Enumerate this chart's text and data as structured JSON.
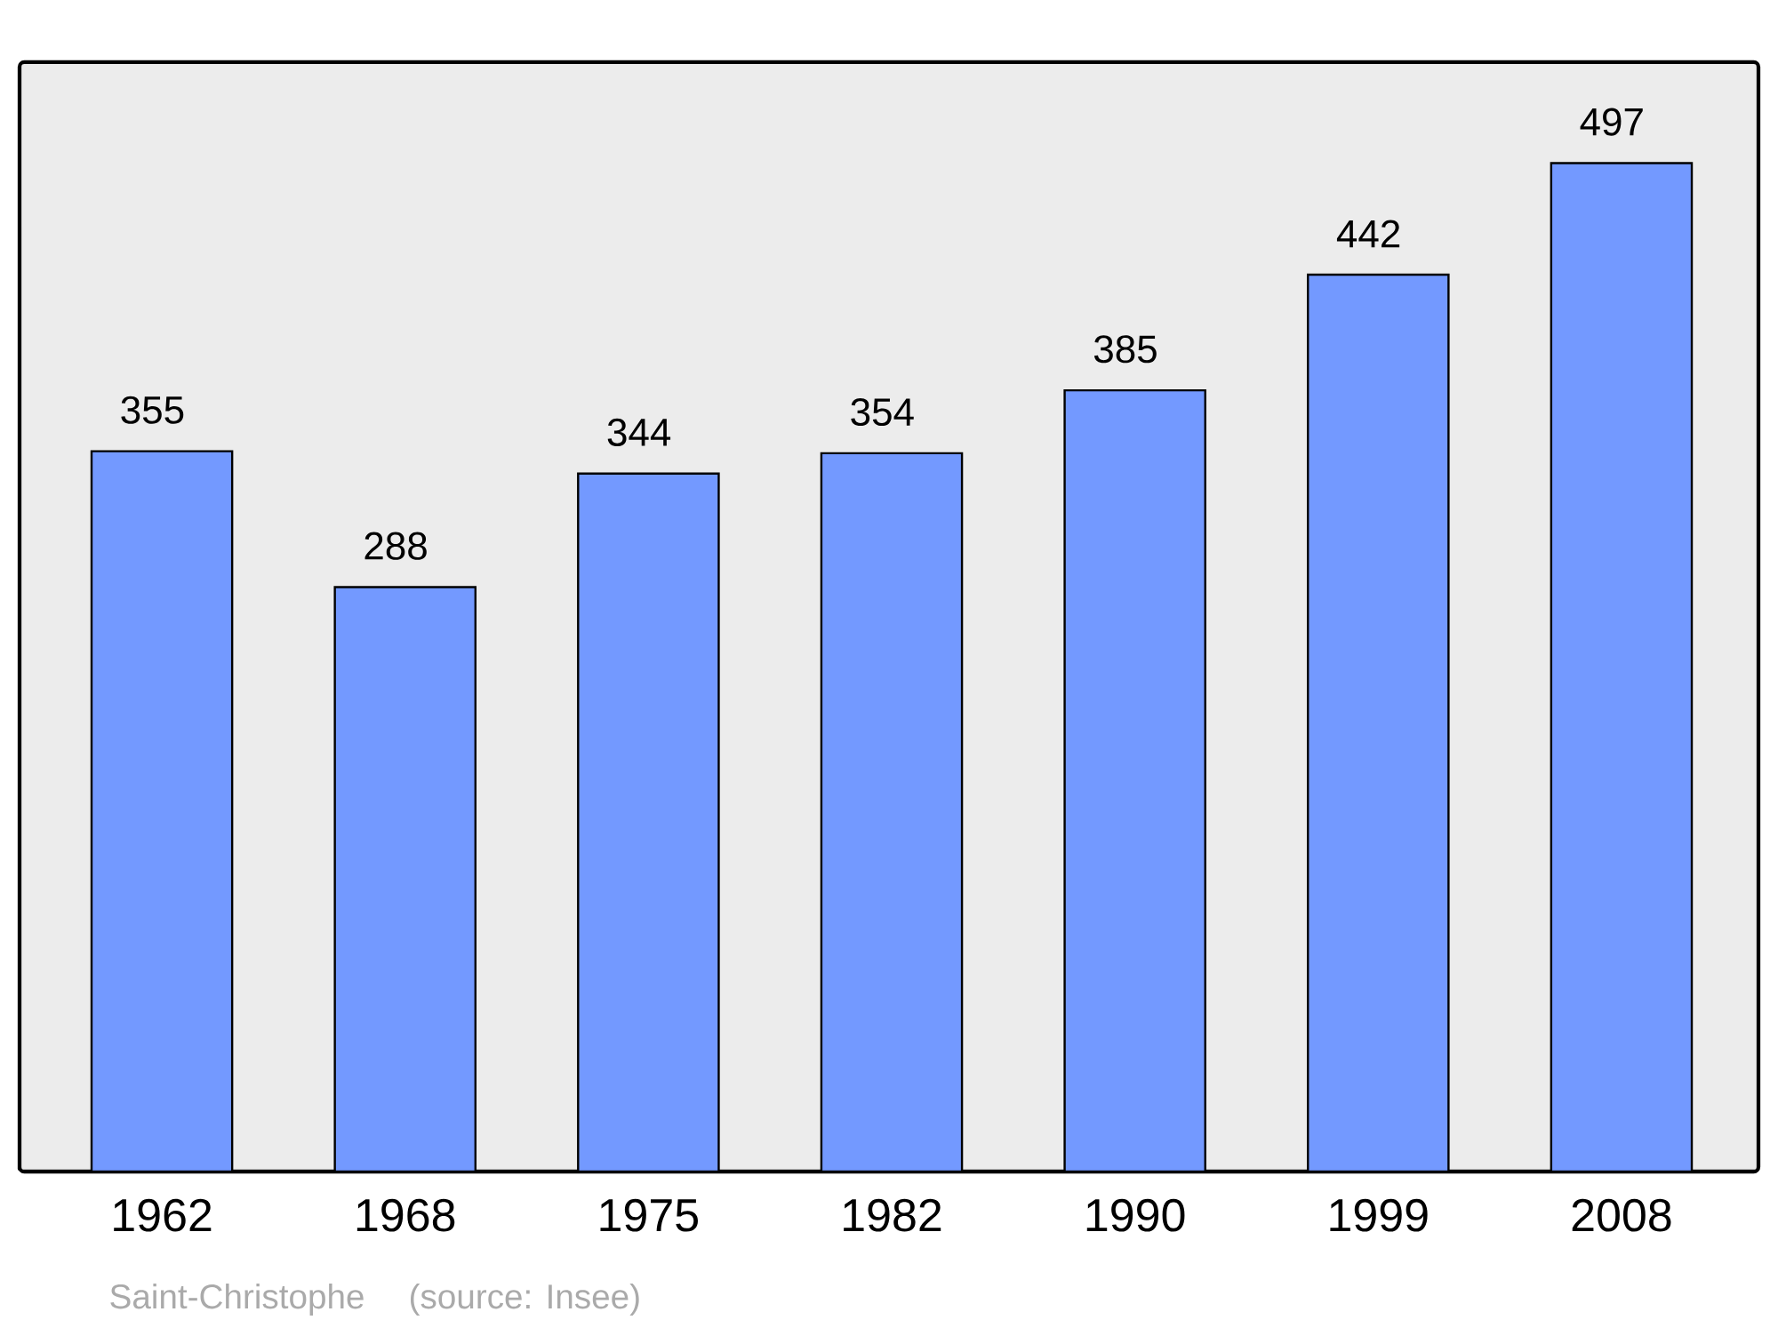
{
  "chart_data": {
    "type": "bar",
    "categories": [
      "1962",
      "1968",
      "1975",
      "1982",
      "1990",
      "1999",
      "2008"
    ],
    "values": [
      355,
      288,
      344,
      354,
      385,
      442,
      497
    ],
    "color": "#7399ff",
    "data_labels": true,
    "annotations": [
      "Saint-Christophe",
      "(source: Insee)"
    ]
  }
}
